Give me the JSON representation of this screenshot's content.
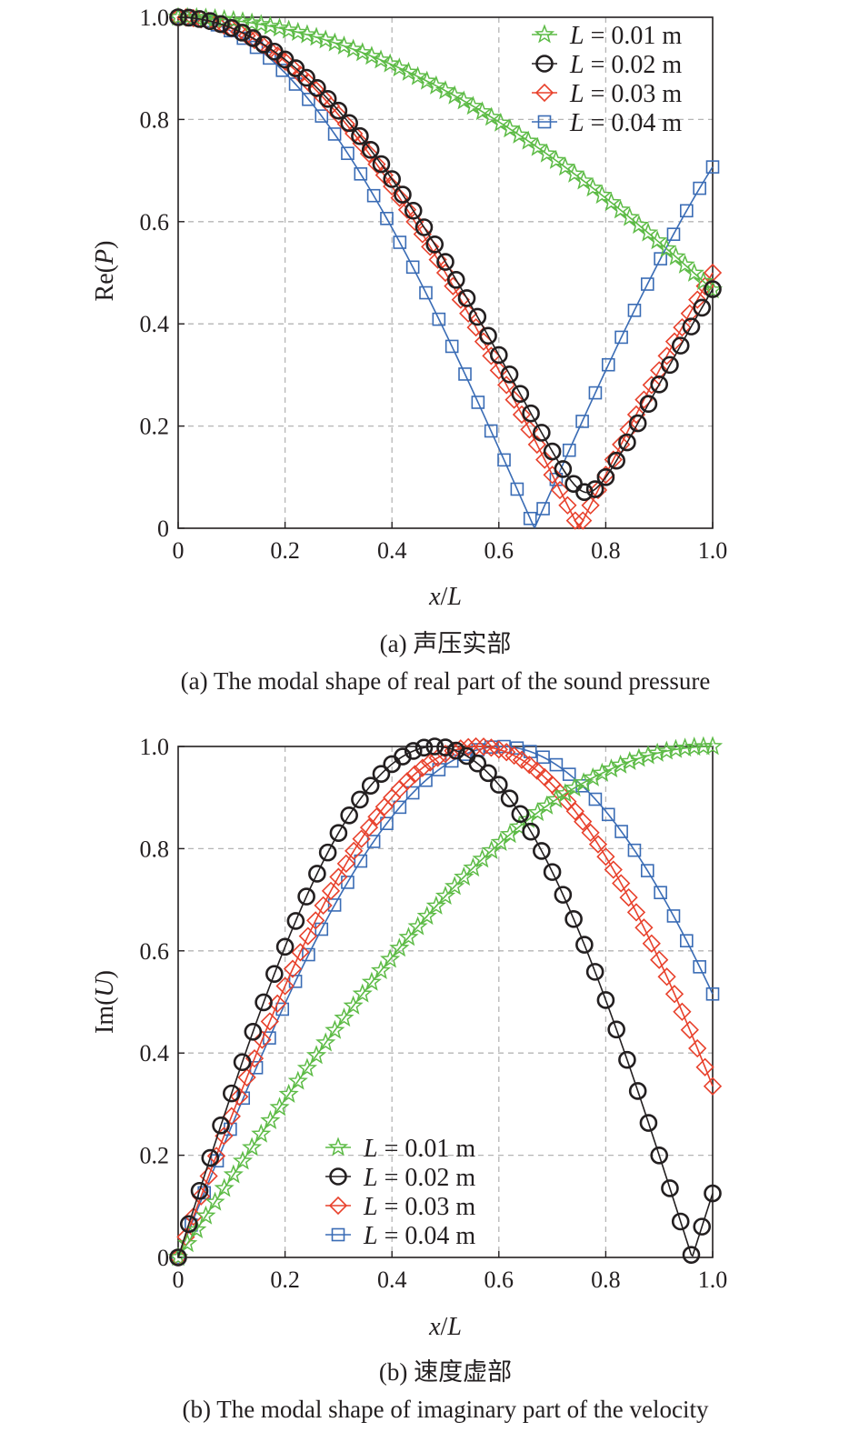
{
  "figure": {
    "panels": [
      {
        "ylabel_text": "Re(",
        "ylabel_var": "P",
        "ylabel_close": ")",
        "xlabel_var1": "x",
        "xlabel_sep": "/",
        "xlabel_var2": "L",
        "caption_cn": "(a) 声压实部",
        "caption_en": "(a) The modal shape of real part of the sound pressure"
      },
      {
        "ylabel_text": "Im(",
        "ylabel_var": "U",
        "ylabel_close": ")",
        "xlabel_var1": "x",
        "xlabel_sep": "/",
        "xlabel_var2": "L",
        "caption_cn": "(b) 速度虚部",
        "caption_en": "(b) The modal shape of imaginary part of the velocity"
      }
    ]
  },
  "colors": {
    "L001": "#5dbb46",
    "L002": "#231f20",
    "L003": "#e8412c",
    "L004": "#3a6cb5"
  },
  "markers": {
    "L001": "star",
    "L002": "circle",
    "L003": "diamond",
    "L004": "square"
  },
  "chart_data": [
    {
      "type": "line",
      "xlabel": "x/L",
      "ylabel": "Re(P)",
      "xlim": [
        0,
        1.0
      ],
      "ylim": [
        0,
        1.0
      ],
      "xticks": [
        "0",
        "0.2",
        "0.4",
        "0.6",
        "0.8",
        "1.0"
      ],
      "yticks": [
        "0",
        "0.2",
        "0.4",
        "0.6",
        "0.8",
        "1.0"
      ],
      "grid": true,
      "legend_position": "top-right",
      "series": [
        {
          "name": "L = 0.01 m",
          "key": "L001",
          "k": 1.0856,
          "mode": "cos",
          "points": 59
        },
        {
          "name": "L = 0.02 m",
          "key": "L002",
          "k": 2.053,
          "mode": "cosmix",
          "eps": 0.07,
          "points": 51
        },
        {
          "name": "L = 0.03 m",
          "key": "L003",
          "k": 2.0944,
          "mode": "abscos",
          "points": 71
        },
        {
          "name": "L = 0.04 m",
          "key": "L004",
          "k": 2.3562,
          "mode": "abscos",
          "points": 42
        }
      ],
      "legend_labels": [
        {
          "var": "L",
          "rest": " = 0.01 m"
        },
        {
          "var": "L",
          "rest": " = 0.02 m"
        },
        {
          "var": "L",
          "rest": " = 0.03 m"
        },
        {
          "var": "L",
          "rest": " = 0.04 m"
        }
      ]
    },
    {
      "type": "line",
      "xlabel": "x/L",
      "ylabel": "Im(U)",
      "xlim": [
        0,
        1.0
      ],
      "ylim": [
        0,
        1.0
      ],
      "xticks": [
        "0",
        "0.2",
        "0.4",
        "0.6",
        "0.8",
        "1.0"
      ],
      "yticks": [
        "0",
        "0.2",
        "0.4",
        "0.6",
        "0.8",
        "1.0"
      ],
      "grid": true,
      "legend_position": "bottom-center",
      "series": [
        {
          "name": "L = 0.01 m",
          "key": "L001",
          "k": 1.5708,
          "mode": "sin",
          "points": 59
        },
        {
          "name": "L = 0.02 m",
          "key": "L002",
          "k": 3.1416,
          "mode": "abssin",
          "shift": 0.04,
          "points": 51
        },
        {
          "name": "L = 0.03 m",
          "key": "L003",
          "k": 2.8,
          "mode": "sin",
          "points": 71
        },
        {
          "name": "L = 0.04 m",
          "key": "L004",
          "k": 2.6,
          "mode": "sin",
          "points": 42
        }
      ],
      "legend_labels": [
        {
          "var": "L",
          "rest": " = 0.01 m"
        },
        {
          "var": "L",
          "rest": " = 0.02 m"
        },
        {
          "var": "L",
          "rest": " = 0.03 m"
        },
        {
          "var": "L",
          "rest": " = 0.04 m"
        }
      ]
    }
  ]
}
